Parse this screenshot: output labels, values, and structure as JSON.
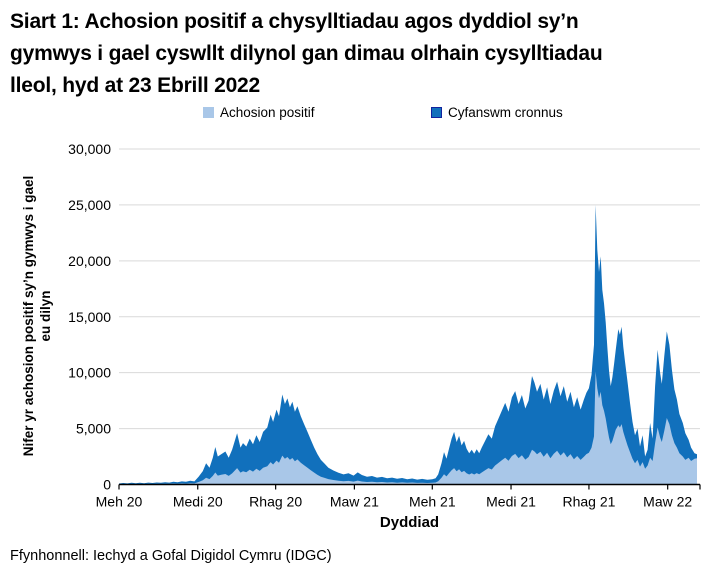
{
  "title": "Siart 1: Achosion positif a chysylltiadau agos dyddiol sy’n\ngymwys i gael cyswllt dilynol gan dimau olrhain cysylltiadau\nlleol, hyd at 23 Ebrill 2022",
  "legend": {
    "items": [
      {
        "label": "Achosion positif",
        "color": "#A9C7E8",
        "border": "#A9C7E8"
      },
      {
        "label": "Cyfanswm cronnus",
        "color": "#1170BC",
        "border": "#12239E"
      }
    ]
  },
  "footer": {
    "source": "Ffynhonnell: Iechyd a Gofal Digidol Cymru (IDGC)"
  },
  "colors": {
    "positive_area": "#A9C7E8",
    "cumulative_area": "#1170BC",
    "gridline": "#D9D9D9",
    "axis": "#000000"
  },
  "chart_data": {
    "type": "area",
    "title": "Siart 1: Achosion positif a chysylltiadau agos dyddiol sy’n gymwys i gael cyswllt dilynol gan dimau olrhain cysylltiadau lleol, hyd at 23 Ebrill 2022",
    "xlabel": "Dyddiad",
    "ylabel": "Nifer yr achosion positif sy’n gymwys i gael\neu dilyn",
    "ylim": [
      0,
      30000
    ],
    "grid": "horizontal",
    "legend_position": "top",
    "x_range_days": [
      0,
      690
    ],
    "y_ticks": [
      {
        "value": 0,
        "label": "0"
      },
      {
        "value": 5000,
        "label": "5,000"
      },
      {
        "value": 10000,
        "label": "10,000"
      },
      {
        "value": 15000,
        "label": "15,000"
      },
      {
        "value": 20000,
        "label": "20,000"
      },
      {
        "value": 25000,
        "label": "25,000"
      },
      {
        "value": 30000,
        "label": "30,000"
      }
    ],
    "x_ticks": [
      {
        "day": 0,
        "label": "Meh 20"
      },
      {
        "day": 94,
        "label": "Medi 20"
      },
      {
        "day": 187,
        "label": "Rhag 20"
      },
      {
        "day": 281,
        "label": "Maw 21"
      },
      {
        "day": 374,
        "label": "Meh 21"
      },
      {
        "day": 468,
        "label": "Medi 21"
      },
      {
        "day": 561,
        "label": "Rhag 21"
      },
      {
        "day": 655,
        "label": "Maw 22"
      }
    ],
    "days": [
      0,
      5,
      10,
      15,
      20,
      25,
      30,
      35,
      40,
      45,
      50,
      55,
      60,
      65,
      70,
      75,
      80,
      85,
      90,
      95,
      100,
      104,
      108,
      112,
      115,
      118,
      122,
      127,
      131,
      135,
      141,
      145,
      148,
      152,
      156,
      160,
      164,
      168,
      172,
      177,
      181,
      184,
      188,
      191,
      195,
      198,
      201,
      204,
      207,
      210,
      213,
      217,
      221,
      225,
      229,
      233,
      237,
      241,
      245,
      250,
      256,
      262,
      268,
      274,
      280,
      285,
      290,
      296,
      302,
      308,
      314,
      320,
      326,
      332,
      338,
      344,
      350,
      356,
      362,
      368,
      374,
      378,
      381,
      385,
      388,
      391,
      394,
      397,
      400,
      403,
      406,
      409,
      412,
      415,
      418,
      421,
      424,
      427,
      430,
      433,
      437,
      441,
      445,
      449,
      453,
      457,
      461,
      465,
      469,
      473,
      477,
      481,
      485,
      489,
      493,
      496,
      499,
      503,
      507,
      511,
      515,
      519,
      523,
      527,
      531,
      535,
      539,
      543,
      547,
      551,
      555,
      558,
      561,
      564,
      567,
      569,
      571,
      573,
      575,
      577,
      579,
      581,
      583,
      585,
      587,
      589,
      591,
      593,
      596,
      598,
      600,
      602,
      604,
      607,
      610,
      613,
      616,
      619,
      622,
      625,
      628,
      631,
      634,
      637,
      640,
      643,
      646,
      648,
      651,
      654,
      657,
      660,
      663,
      666,
      669,
      673,
      676,
      680,
      683,
      687,
      690
    ],
    "series": [
      {
        "name": "Cyfanswm cronnus",
        "color": "#1170BC",
        "values": [
          90,
          130,
          100,
          150,
          110,
          160,
          120,
          170,
          130,
          180,
          150,
          210,
          170,
          240,
          200,
          280,
          240,
          330,
          280,
          700,
          1200,
          1900,
          1500,
          2400,
          3350,
          2500,
          2700,
          2950,
          2400,
          3100,
          4590,
          3300,
          3700,
          3400,
          4100,
          3600,
          4400,
          3800,
          4700,
          5100,
          6250,
          5600,
          6700,
          6100,
          8050,
          7200,
          7700,
          6900,
          7400,
          6500,
          7000,
          6100,
          5400,
          4700,
          4000,
          3300,
          2700,
          2200,
          1900,
          1500,
          1250,
          1050,
          900,
          1000,
          800,
          1080,
          850,
          700,
          760,
          620,
          680,
          560,
          620,
          520,
          580,
          470,
          540,
          440,
          500,
          420,
          470,
          560,
          900,
          1900,
          2900,
          2300,
          3200,
          4100,
          4700,
          3800,
          4350,
          3500,
          3900,
          3200,
          2800,
          3100,
          2750,
          3150,
          2800,
          3300,
          3900,
          4500,
          4100,
          5200,
          5900,
          6600,
          7300,
          6500,
          7800,
          8350,
          7200,
          8000,
          6800,
          7500,
          9700,
          9100,
          8300,
          9000,
          7600,
          8700,
          7200,
          8400,
          9200,
          7900,
          8800,
          7400,
          8300,
          6900,
          7800,
          6700,
          7600,
          8200,
          8600,
          9800,
          12500,
          25000,
          21000,
          19000,
          20400,
          17400,
          16200,
          14500,
          12200,
          10200,
          8800,
          9600,
          10800,
          12000,
          13900,
          13400,
          14100,
          12300,
          11000,
          9200,
          7300,
          5600,
          4400,
          5000,
          3400,
          4400,
          2500,
          3100,
          5500,
          4100,
          8800,
          12050,
          10000,
          9000,
          11500,
          13690,
          12500,
          10270,
          8500,
          7600,
          6300,
          5500,
          4600,
          4000,
          3300,
          2800,
          2700
        ]
      },
      {
        "name": "Achosion positif",
        "color": "#A9C7E8",
        "values": [
          30,
          45,
          35,
          50,
          40,
          55,
          40,
          60,
          45,
          65,
          50,
          75,
          60,
          85,
          70,
          95,
          80,
          110,
          95,
          225,
          385,
          610,
          480,
          770,
          1070,
          800,
          865,
          940,
          770,
          990,
          1470,
          1060,
          1180,
          1090,
          1310,
          1150,
          1410,
          1220,
          1500,
          1630,
          2000,
          1790,
          2140,
          1950,
          2580,
          2300,
          2460,
          2210,
          2370,
          2080,
          2240,
          1950,
          1730,
          1500,
          1280,
          1060,
          860,
          700,
          610,
          480,
          400,
          340,
          290,
          320,
          260,
          350,
          270,
          225,
          245,
          200,
          220,
          180,
          200,
          165,
          185,
          150,
          175,
          140,
          160,
          135,
          150,
          180,
          290,
          600,
          910,
          720,
          1000,
          1280,
          1470,
          1190,
          1360,
          1100,
          1220,
          1010,
          890,
          1000,
          890,
          1020,
          910,
          1070,
          1270,
          1470,
          1340,
          1700,
          1930,
          2160,
          2390,
          2130,
          2550,
          2740,
          2360,
          2620,
          2230,
          2460,
          3100,
          2950,
          2700,
          2930,
          2480,
          2840,
          2350,
          2750,
          3010,
          2590,
          2880,
          2420,
          2720,
          2260,
          2550,
          2200,
          2490,
          2720,
          2840,
          3280,
          4300,
          10100,
          8600,
          7700,
          8300,
          7100,
          6600,
          5900,
          5000,
          4200,
          3600,
          3900,
          4400,
          4900,
          5300,
          5100,
          5400,
          4700,
          4200,
          3500,
          2900,
          2300,
          1900,
          2200,
          1600,
          2000,
          1400,
          1700,
          2400,
          2100,
          3700,
          5100,
          4200,
          3800,
          4800,
          5950,
          5400,
          4400,
          3700,
          3300,
          2800,
          2500,
          2200,
          2400,
          2100,
          2300,
          2350
        ]
      }
    ]
  }
}
